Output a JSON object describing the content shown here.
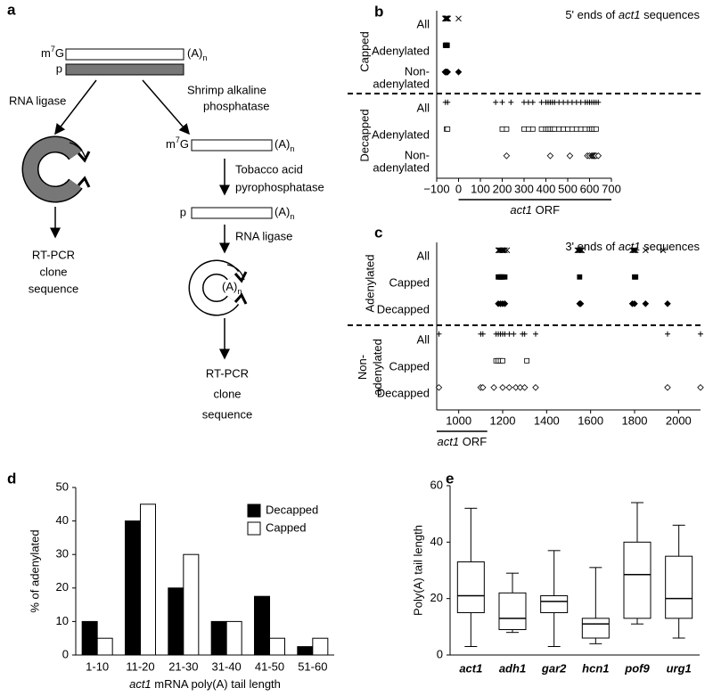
{
  "panel_labels": [
    "a",
    "b",
    "c",
    "d",
    "e"
  ],
  "diagram": {
    "cap": [
      "m",
      "7",
      "G"
    ],
    "polyA": [
      "(A)",
      "n"
    ],
    "phosphate": "p",
    "rna_ligase": "RNA ligase",
    "sap": [
      "Shrimp alkaline",
      "phosphatase"
    ],
    "tap": [
      "Tobacco acid",
      "pyrophosphatase"
    ],
    "readout": [
      "RT-PCR",
      "clone",
      "sequence"
    ]
  },
  "chart_data": [
    {
      "type": "strip",
      "title": [
        {
          "text": "5' ends of "
        },
        {
          "text": "act1",
          "italic": true
        },
        {
          "text": " sequences"
        }
      ],
      "xlim": [
        -100,
        700
      ],
      "xticks": [
        {
          "value": -100,
          "label": "−100"
        },
        0,
        100,
        200,
        300,
        400,
        500,
        600,
        700
      ],
      "orf_label": [
        {
          "text": "act1",
          "italic": true
        },
        {
          "text": " ORF"
        }
      ],
      "orf_range": [
        0,
        700
      ],
      "groups": [
        {
          "name": [
            "Capped"
          ],
          "rows": [
            {
              "name": [
                "All"
              ],
              "marker": "x",
              "values": [
                -62,
                -60,
                -59,
                -58,
                -57,
                -56,
                -55,
                -54,
                -53,
                -52,
                -51,
                -50,
                -49,
                -48,
                0
              ]
            },
            {
              "name": [
                "Adenylated"
              ],
              "marker": "square-filled",
              "values": [
                -60,
                -58,
                -57,
                -56,
                -55,
                -54,
                -53,
                -52
              ]
            },
            {
              "name": [
                "Non-",
                "adenylated"
              ],
              "marker": "diamond-filled",
              "values": [
                -62,
                -58,
                -56,
                -54,
                -50,
                0
              ]
            }
          ]
        },
        {
          "name": [
            "Decapped"
          ],
          "rows": [
            {
              "name": [
                "All"
              ],
              "marker": "plus",
              "values": [
                -60,
                -50,
                170,
                200,
                240,
                300,
                320,
                340,
                380,
                400,
                410,
                420,
                430,
                440,
                460,
                480,
                500,
                520,
                540,
                560,
                580,
                590,
                600,
                610,
                620,
                630,
                640
              ]
            },
            {
              "name": [
                "Adenylated"
              ],
              "marker": "square-open",
              "values": [
                -55,
                -50,
                200,
                220,
                300,
                320,
                340,
                380,
                400,
                410,
                420,
                430,
                440,
                460,
                480,
                500,
                520,
                540,
                560,
                580,
                600,
                610,
                620,
                630
              ]
            },
            {
              "name": [
                "Non-",
                "adenylated"
              ],
              "marker": "diamond-open",
              "values": [
                220,
                420,
                510,
                590,
                600,
                610,
                615,
                620,
                625,
                630,
                640
              ]
            }
          ]
        }
      ]
    },
    {
      "type": "strip",
      "title": [
        {
          "text": "3' ends of "
        },
        {
          "text": "act1",
          "italic": true
        },
        {
          "text": " sequences"
        }
      ],
      "xlim": [
        900,
        2100
      ],
      "xticks": [
        1000,
        1200,
        1400,
        1600,
        1800,
        2000
      ],
      "orf_label": [
        {
          "text": "act1",
          "italic": true
        },
        {
          "text": " ORF"
        }
      ],
      "orf_range": [
        900,
        1130
      ],
      "groups": [
        {
          "name": [
            "Adenylated"
          ],
          "rows": [
            {
              "name": [
                "All"
              ],
              "marker": "x",
              "values": [
                1180,
                1185,
                1190,
                1195,
                1200,
                1205,
                1210,
                1220,
                1540,
                1545,
                1550,
                1555,
                1560,
                1790,
                1795,
                1800,
                1805,
                1850,
                1930
              ]
            },
            {
              "name": [
                "Capped"
              ],
              "marker": "square-filled",
              "values": [
                1180,
                1185,
                1190,
                1195,
                1200,
                1210,
                1550,
                1800,
                1805
              ]
            },
            {
              "name": [
                "Decapped"
              ],
              "marker": "diamond-filled",
              "values": [
                1180,
                1190,
                1200,
                1210,
                1550,
                1555,
                1790,
                1800,
                1850,
                1950
              ]
            }
          ]
        },
        {
          "name": [
            "Non-",
            "adenylated"
          ],
          "rows": [
            {
              "name": [
                "All"
              ],
              "marker": "plus",
              "values": [
                910,
                1100,
                1110,
                1170,
                1180,
                1190,
                1200,
                1210,
                1230,
                1250,
                1290,
                1300,
                1350,
                1950,
                2100
              ]
            },
            {
              "name": [
                "Capped"
              ],
              "marker": "square-open",
              "values": [
                1170,
                1180,
                1190,
                1200,
                1310
              ]
            },
            {
              "name": [
                "Decapped"
              ],
              "marker": "diamond-open",
              "values": [
                910,
                1100,
                1110,
                1160,
                1200,
                1230,
                1260,
                1280,
                1300,
                1350,
                1950,
                2100
              ]
            }
          ]
        }
      ]
    },
    {
      "type": "bar",
      "categories": [
        "1-10",
        "11-20",
        "21-30",
        "31-40",
        "41-50",
        "51-60"
      ],
      "series": [
        {
          "name": "Decapped",
          "color": "#000000",
          "values": [
            10,
            40,
            20,
            10,
            17.5,
            2.5
          ]
        },
        {
          "name": "Capped",
          "color": "#ffffff",
          "values": [
            5,
            45,
            30,
            10,
            5,
            5
          ]
        }
      ],
      "ylim": [
        0,
        50
      ],
      "yticks": [
        0,
        10,
        20,
        30,
        40,
        50
      ],
      "ylabel": "% of adenylated",
      "xlabel": [
        {
          "text": "act1",
          "italic": true
        },
        {
          "text": " mRNA poly(A) tail length"
        }
      ],
      "legend": "upper right"
    },
    {
      "type": "box",
      "categories": [
        "act1",
        "adh1",
        "gar2",
        "hcn1",
        "pof9",
        "urg1"
      ],
      "whisker_low": [
        3,
        8,
        3,
        4,
        11,
        6
      ],
      "q1": [
        15,
        9,
        15,
        6,
        13,
        13
      ],
      "median": [
        21,
        13,
        19,
        11,
        28.5,
        20
      ],
      "q3": [
        33,
        22,
        21,
        13,
        40,
        35
      ],
      "whisker_high": [
        52,
        29,
        37,
        31,
        54,
        46
      ],
      "ylim": [
        0,
        60
      ],
      "yticks": [
        0,
        20,
        40,
        60
      ],
      "ylabel": "Poly(A) tail length"
    }
  ]
}
